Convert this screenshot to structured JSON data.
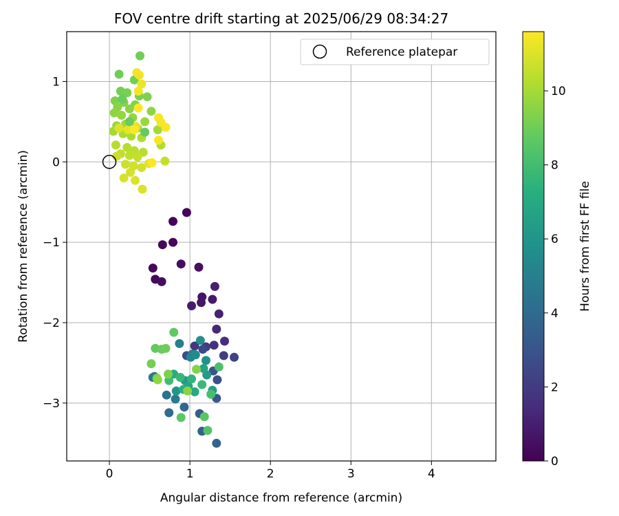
{
  "chart_data": {
    "type": "scatter",
    "title": "FOV centre drift starting at 2025/06/29 08:34:27",
    "xlabel": "Angular distance from reference (arcmin)",
    "ylabel": "Rotation from reference (arcmin)",
    "xlim": [
      -0.53,
      4.8
    ],
    "ylim": [
      -3.72,
      1.62
    ],
    "x_ticks": [
      0,
      1,
      2,
      3,
      4
    ],
    "y_ticks": [
      -3,
      -2,
      -1,
      0,
      1
    ],
    "grid": true,
    "legend": {
      "position": "top-right",
      "entries": [
        "Reference platepar"
      ]
    },
    "reference_point": {
      "name": "Reference platepar",
      "x": 0,
      "y": 0
    },
    "colorbar": {
      "label": "Hours from first FF file",
      "colormap": "viridis",
      "range": [
        0,
        11.6
      ],
      "ticks": [
        0,
        2,
        4,
        6,
        8,
        10
      ]
    },
    "series": [
      {
        "name": "",
        "columns": [
          "x",
          "y",
          "hours"
        ],
        "points": [
          [
            0.96,
            -0.63,
            0.1
          ],
          [
            0.79,
            -0.74,
            0.1
          ],
          [
            0.66,
            -1.03,
            0.2
          ],
          [
            0.79,
            -1.0,
            0.2
          ],
          [
            0.54,
            -1.32,
            0.3
          ],
          [
            0.57,
            -1.46,
            0.3
          ],
          [
            0.65,
            -1.49,
            0.4
          ],
          [
            0.89,
            -1.27,
            0.4
          ],
          [
            1.11,
            -1.31,
            0.5
          ],
          [
            1.15,
            -1.68,
            0.6
          ],
          [
            1.14,
            -1.75,
            0.7
          ],
          [
            1.28,
            -1.71,
            0.8
          ],
          [
            1.02,
            -1.79,
            0.9
          ],
          [
            1.31,
            -1.55,
            1.0
          ],
          [
            1.36,
            -1.89,
            1.1
          ],
          [
            1.33,
            -2.08,
            1.3
          ],
          [
            1.43,
            -2.23,
            1.5
          ],
          [
            1.3,
            -2.28,
            1.6
          ],
          [
            1.06,
            -2.29,
            1.8
          ],
          [
            1.2,
            -2.3,
            2.0
          ],
          [
            1.42,
            -2.41,
            2.1
          ],
          [
            1.55,
            -2.43,
            2.3
          ],
          [
            1.16,
            -2.33,
            2.5
          ],
          [
            0.96,
            -2.41,
            2.7
          ],
          [
            1.34,
            -2.71,
            2.8
          ],
          [
            1.29,
            -2.6,
            3.0
          ],
          [
            1.33,
            -2.94,
            3.2
          ],
          [
            1.12,
            -3.13,
            3.4
          ],
          [
            1.15,
            -3.35,
            3.6
          ],
          [
            1.33,
            -3.5,
            3.7
          ],
          [
            0.93,
            -3.05,
            3.9
          ],
          [
            0.74,
            -3.12,
            4.1
          ],
          [
            0.71,
            -2.9,
            4.3
          ],
          [
            0.56,
            -2.67,
            4.4
          ],
          [
            0.54,
            -2.68,
            4.6
          ],
          [
            0.82,
            -2.95,
            4.8
          ],
          [
            0.87,
            -2.26,
            5.0
          ],
          [
            1.03,
            -2.39,
            5.1
          ],
          [
            1.01,
            -2.43,
            5.3
          ],
          [
            1.07,
            -2.4,
            5.5
          ],
          [
            1.13,
            -2.22,
            5.7
          ],
          [
            1.2,
            -2.47,
            5.8
          ],
          [
            0.83,
            -2.85,
            6.0
          ],
          [
            0.94,
            -2.72,
            6.2
          ],
          [
            1.21,
            -2.65,
            6.3
          ],
          [
            1.28,
            -2.84,
            6.5
          ],
          [
            1.17,
            -2.57,
            6.7
          ],
          [
            0.98,
            -2.79,
            6.8
          ],
          [
            1.06,
            -2.86,
            7.0
          ],
          [
            0.8,
            -2.64,
            7.2
          ],
          [
            0.92,
            -2.83,
            7.3
          ],
          [
            1.02,
            -2.7,
            7.5
          ],
          [
            0.88,
            -2.68,
            7.7
          ],
          [
            1.15,
            -2.77,
            7.8
          ],
          [
            0.74,
            -2.72,
            8.0
          ],
          [
            1.26,
            -2.89,
            8.1
          ],
          [
            1.36,
            -2.55,
            8.2
          ],
          [
            1.22,
            -3.34,
            8.4
          ],
          [
            1.18,
            -3.17,
            8.5
          ],
          [
            0.89,
            -3.18,
            8.6
          ],
          [
            0.8,
            -2.12,
            8.7
          ],
          [
            0.57,
            -2.32,
            8.8
          ],
          [
            0.65,
            -2.33,
            8.9
          ],
          [
            0.7,
            -2.32,
            9.0
          ],
          [
            0.52,
            -2.51,
            9.1
          ],
          [
            0.59,
            -2.69,
            9.2
          ],
          [
            0.73,
            -2.64,
            9.3
          ],
          [
            1.08,
            -2.58,
            9.4
          ],
          [
            0.97,
            -2.85,
            9.5
          ],
          [
            0.6,
            -2.71,
            9.6
          ]
        ]
      },
      {
        "name": "",
        "columns": [
          "x",
          "y",
          "hours"
        ],
        "points": [
          [
            0.38,
            1.32,
            9.0
          ],
          [
            0.12,
            1.09,
            9.0
          ],
          [
            0.31,
            1.02,
            9.1
          ],
          [
            0.14,
            0.88,
            9.1
          ],
          [
            0.22,
            0.86,
            9.2
          ],
          [
            0.37,
            0.82,
            9.2
          ],
          [
            0.47,
            0.81,
            9.3
          ],
          [
            0.07,
            0.76,
            9.3
          ],
          [
            0.18,
            0.74,
            9.4
          ],
          [
            0.32,
            0.71,
            9.4
          ],
          [
            0.1,
            0.68,
            9.5
          ],
          [
            0.25,
            0.66,
            9.5
          ],
          [
            0.52,
            0.63,
            9.6
          ],
          [
            0.06,
            0.61,
            9.6
          ],
          [
            0.15,
            0.58,
            9.7
          ],
          [
            0.29,
            0.55,
            9.7
          ],
          [
            0.44,
            0.5,
            9.8
          ],
          [
            0.09,
            0.45,
            9.8
          ],
          [
            0.2,
            0.47,
            9.9
          ],
          [
            0.35,
            0.42,
            9.9
          ],
          [
            0.6,
            0.4,
            10.0
          ],
          [
            0.05,
            0.38,
            10.0
          ],
          [
            0.17,
            0.35,
            10.1
          ],
          [
            0.27,
            0.32,
            10.1
          ],
          [
            0.4,
            0.3,
            10.2
          ],
          [
            0.64,
            0.21,
            10.2
          ],
          [
            0.08,
            0.21,
            10.3
          ],
          [
            0.22,
            0.18,
            10.3
          ],
          [
            0.31,
            0.14,
            10.4
          ],
          [
            0.42,
            0.12,
            10.4
          ],
          [
            0.14,
            0.1,
            10.5
          ],
          [
            0.25,
            0.08,
            10.5
          ],
          [
            0.35,
            0.06,
            10.6
          ],
          [
            0.69,
            0.01,
            10.6
          ],
          [
            0.09,
            0.07,
            10.7
          ],
          [
            0.2,
            -0.03,
            10.7
          ],
          [
            0.3,
            -0.05,
            10.8
          ],
          [
            0.4,
            -0.07,
            10.8
          ],
          [
            0.26,
            -0.13,
            10.9
          ],
          [
            0.18,
            -0.2,
            10.9
          ],
          [
            0.32,
            -0.23,
            11.0
          ],
          [
            0.41,
            -0.34,
            11.0
          ],
          [
            0.49,
            -0.02,
            11.1
          ],
          [
            0.12,
            0.42,
            11.1
          ],
          [
            0.23,
            0.4,
            11.2
          ],
          [
            0.33,
            0.44,
            11.2
          ],
          [
            0.4,
            0.97,
            11.3
          ],
          [
            0.37,
            1.08,
            11.3
          ],
          [
            0.34,
            1.11,
            11.4
          ],
          [
            0.36,
            0.88,
            11.4
          ],
          [
            0.61,
            0.55,
            11.5
          ],
          [
            0.64,
            0.49,
            11.5
          ],
          [
            0.7,
            0.43,
            11.5
          ],
          [
            0.61,
            0.27,
            11.5
          ],
          [
            0.36,
            0.67,
            11.6
          ],
          [
            0.31,
            0.4,
            11.6
          ],
          [
            0.53,
            -0.01,
            11.6
          ],
          [
            0.25,
            0.5,
            8.9
          ],
          [
            0.16,
            0.78,
            8.9
          ],
          [
            0.44,
            0.37,
            8.8
          ]
        ]
      }
    ]
  }
}
